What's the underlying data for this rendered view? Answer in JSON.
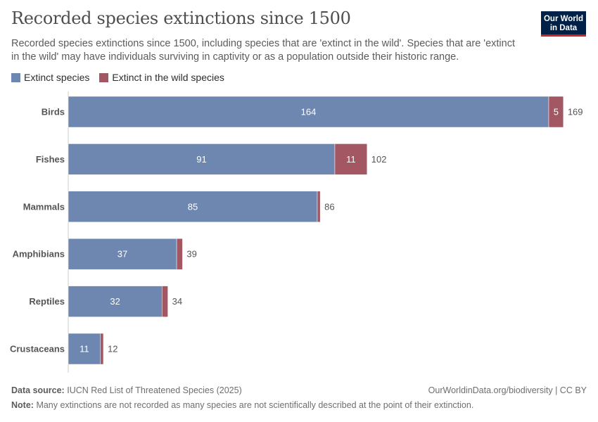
{
  "header": {
    "title": "Recorded species extinctions since 1500",
    "subtitle": "Recorded species extinctions since 1500, including species that are 'extinct in the wild'. Species that are 'extinct in the wild' may have individuals surviving in captivity or as a population outside their historic range.",
    "logo": "Our World in Data"
  },
  "chart_data": {
    "type": "bar",
    "orientation": "horizontal",
    "stacked": true,
    "categories": [
      "Birds",
      "Fishes",
      "Mammals",
      "Amphibians",
      "Reptiles",
      "Crustaceans"
    ],
    "series": [
      {
        "name": "Extinct species",
        "color": "#6d87b0",
        "values": [
          164,
          91,
          85,
          37,
          32,
          11
        ]
      },
      {
        "name": "Extinct in the wild species",
        "color": "#a25763",
        "values": [
          5,
          11,
          1,
          2,
          2,
          1
        ]
      }
    ],
    "totals": [
      169,
      102,
      86,
      39,
      34,
      12
    ],
    "legend": "top-left",
    "grid": false
  },
  "footer": {
    "source_label": "Data source:",
    "source": "IUCN Red List of Threatened Species (2025)",
    "url": "OurWorldinData.org/biodiversity | CC BY",
    "note_label": "Note:",
    "note": "Many extinctions are not recorded as many species are not scientifically described at the point of their extinction."
  }
}
